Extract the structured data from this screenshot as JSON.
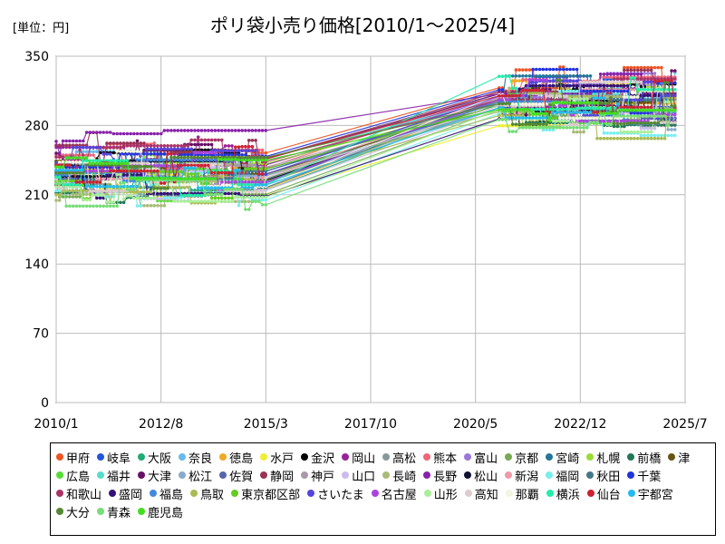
{
  "chart_data": {
    "type": "line",
    "title": "ポリ袋小売り価格[2010/1～2025/4]",
    "unit_label": "[単位：円]",
    "ylim": [
      0,
      350
    ],
    "yticks": [
      "0",
      "70",
      "140",
      "210",
      "280",
      "350"
    ],
    "xticks": [
      "2010/1",
      "2012/8",
      "2015/3",
      "2017/10",
      "2020/5",
      "2022/12",
      "2025/7"
    ],
    "grid": true,
    "legend_position": "bottom",
    "series": [
      {
        "name": "甲府",
        "color": "#ee5522",
        "before": 244,
        "after": 318
      },
      {
        "name": "岐阜",
        "color": "#2255dd",
        "before": 230,
        "after": 308
      },
      {
        "name": "大阪",
        "color": "#22aa77",
        "before": 222,
        "after": 302
      },
      {
        "name": "奈良",
        "color": "#66bbee",
        "before": 236,
        "after": 312
      },
      {
        "name": "徳島",
        "color": "#eeaa22",
        "before": 228,
        "after": 305
      },
      {
        "name": "水戸",
        "color": "#eeee33",
        "before": 218,
        "after": 300
      },
      {
        "name": "金沢",
        "color": "#000000",
        "before": 240,
        "after": 304
      },
      {
        "name": "岡山",
        "color": "#992299",
        "before": 258,
        "after": 310
      },
      {
        "name": "高松",
        "color": "#889999",
        "before": 226,
        "after": 298
      },
      {
        "name": "熊本",
        "color": "#ee6677",
        "before": 250,
        "after": 315
      },
      {
        "name": "富山",
        "color": "#9977dd",
        "before": 232,
        "after": 309
      },
      {
        "name": "京都",
        "color": "#77aa55",
        "before": 224,
        "after": 296
      },
      {
        "name": "宮崎",
        "color": "#227799",
        "before": 234,
        "after": 306
      },
      {
        "name": "札幌",
        "color": "#99dd33",
        "before": 238,
        "after": 302
      },
      {
        "name": "前橋",
        "color": "#227755",
        "before": 212,
        "after": 292
      },
      {
        "name": "津",
        "color": "#665511",
        "before": 244,
        "after": 300
      },
      {
        "name": "広島",
        "color": "#55dd33",
        "before": 220,
        "after": 294
      },
      {
        "name": "福井",
        "color": "#55ddcc",
        "before": 242,
        "after": 306
      },
      {
        "name": "大津",
        "color": "#661166",
        "before": 252,
        "after": 312
      },
      {
        "name": "松江",
        "color": "#88aacc",
        "before": 230,
        "after": 298
      },
      {
        "name": "佐賀",
        "color": "#5566aa",
        "before": 226,
        "after": 304
      },
      {
        "name": "静岡",
        "color": "#993355",
        "before": 260,
        "after": 314
      },
      {
        "name": "神戸",
        "color": "#aa99aa",
        "before": 236,
        "after": 302
      },
      {
        "name": "山口",
        "color": "#ccbbee",
        "before": 222,
        "after": 296
      },
      {
        "name": "長崎",
        "color": "#aabb77",
        "before": 216,
        "after": 294
      },
      {
        "name": "長野",
        "color": "#8822aa",
        "before": 264,
        "after": 312
      },
      {
        "name": "松山",
        "color": "#111133",
        "before": 246,
        "after": 300
      },
      {
        "name": "新潟",
        "color": "#ee99aa",
        "before": 228,
        "after": 308
      },
      {
        "name": "福岡",
        "color": "#77eeee",
        "before": 214,
        "after": 292
      },
      {
        "name": "秋田",
        "color": "#447788",
        "before": 232,
        "after": 304
      },
      {
        "name": "千葉",
        "color": "#2233dd",
        "before": 238,
        "after": 316
      },
      {
        "name": "和歌山",
        "color": "#aa3366",
        "before": 248,
        "after": 306
      },
      {
        "name": "盛岡",
        "color": "#331177",
        "before": 220,
        "after": 298
      },
      {
        "name": "福島",
        "color": "#4488dd",
        "before": 230,
        "after": 304
      },
      {
        "name": "鳥取",
        "color": "#aabb55",
        "before": 210,
        "after": 290
      },
      {
        "name": "東京都区部",
        "color": "#66cc22",
        "before": 224,
        "after": 300
      },
      {
        "name": "さいたま",
        "color": "#5544dd",
        "before": 242,
        "after": 310
      },
      {
        "name": "名古屋",
        "color": "#aa44dd",
        "before": 234,
        "after": 306
      },
      {
        "name": "山形",
        "color": "#aaee99",
        "before": 218,
        "after": 296
      },
      {
        "name": "高知",
        "color": "#ddcccc",
        "before": 226,
        "after": 300
      },
      {
        "name": "那覇",
        "color": "#f4f4e0",
        "before": 236,
        "after": 302
      },
      {
        "name": "横浜",
        "color": "#22eeaa",
        "before": 228,
        "after": 306
      },
      {
        "name": "仙台",
        "color": "#cc2233",
        "before": 240,
        "after": 310
      },
      {
        "name": "宇都宮",
        "color": "#22bbee",
        "before": 222,
        "after": 298
      },
      {
        "name": "大分",
        "color": "#558833",
        "before": 232,
        "after": 302
      },
      {
        "name": "青森",
        "color": "#77dd77",
        "before": 214,
        "after": 286
      },
      {
        "name": "鹿児島",
        "color": "#44dd22",
        "before": 238,
        "after": 296
      }
    ]
  }
}
